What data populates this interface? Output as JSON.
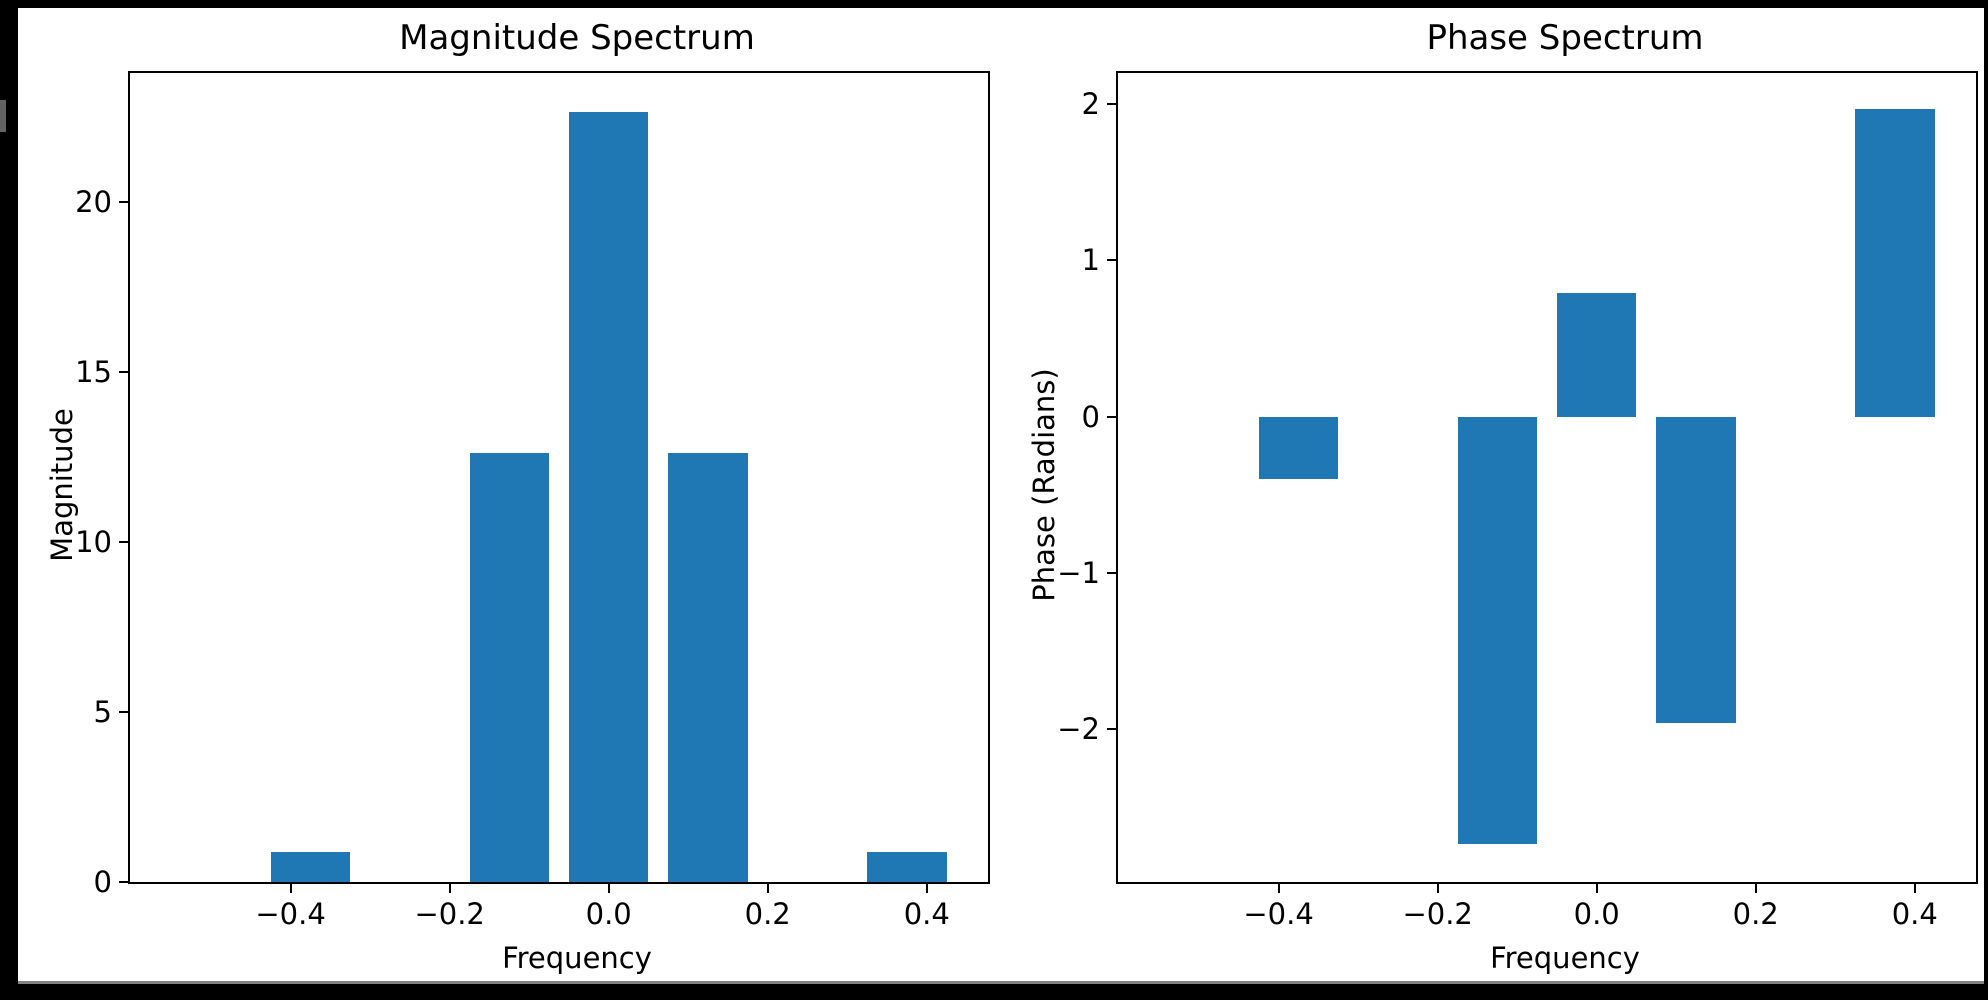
{
  "figure": {
    "background": "#000000",
    "canvas_background": "#ffffff",
    "bottom_edge_line_color": "#828282"
  },
  "chart_data": [
    {
      "type": "bar",
      "id": "magnitude-spectrum",
      "title": "Magnitude Spectrum",
      "xlabel": "Frequency",
      "ylabel": "Magnitude",
      "x": [
        -0.375,
        -0.125,
        0.0,
        0.125,
        0.375
      ],
      "values": [
        0.89,
        12.62,
        22.65,
        12.62,
        0.89
      ],
      "bar_width": 0.1,
      "bar_color": "#1f77b4",
      "xlim": [
        -0.602,
        0.477
      ],
      "ylim": [
        0,
        23.8
      ],
      "xtick_values": [
        -0.4,
        -0.2,
        0.0,
        0.2,
        0.4
      ],
      "xtick_labels": [
        "−0.4",
        "−0.2",
        "0.0",
        "0.2",
        "0.4"
      ],
      "ytick_values": [
        0,
        5,
        10,
        15,
        20
      ],
      "ytick_labels": [
        "0",
        "5",
        "10",
        "15",
        "20"
      ],
      "grid": false,
      "legend": null
    },
    {
      "type": "bar",
      "id": "phase-spectrum",
      "title": "Phase Spectrum",
      "xlabel": "Frequency",
      "ylabel": "Phase (Radians)",
      "x": [
        -0.375,
        -0.125,
        0.0,
        0.125,
        0.375
      ],
      "values": [
        -0.4,
        -2.74,
        0.79,
        -1.96,
        1.97
      ],
      "bar_width": 0.1,
      "bar_color": "#1f77b4",
      "xlim": [
        -0.602,
        0.477
      ],
      "ylim": [
        -2.98,
        2.2
      ],
      "xtick_values": [
        -0.4,
        -0.2,
        0.0,
        0.2,
        0.4
      ],
      "xtick_labels": [
        "−0.4",
        "−0.2",
        "0.0",
        "0.2",
        "0.4"
      ],
      "ytick_values": [
        -2,
        -1,
        0,
        1,
        2
      ],
      "ytick_labels": [
        "−2",
        "−1",
        "0",
        "1",
        "2"
      ],
      "grid": false,
      "legend": null
    }
  ]
}
